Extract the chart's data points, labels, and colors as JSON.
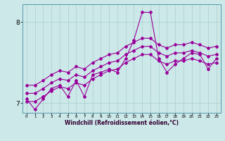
{
  "xlabel": "Windchill (Refroidissement éolien,°C)",
  "background_color": "#cce8e8",
  "grid_color": "#aacfcf",
  "line_color": "#990099",
  "x": [
    0,
    1,
    2,
    3,
    4,
    5,
    6,
    7,
    8,
    9,
    10,
    11,
    12,
    13,
    14,
    15,
    16,
    17,
    18,
    19,
    20,
    21,
    22,
    23
  ],
  "series_volatile": [
    7.05,
    6.92,
    7.05,
    7.18,
    7.22,
    7.08,
    7.28,
    7.08,
    7.35,
    7.38,
    7.42,
    7.38,
    7.55,
    7.78,
    8.12,
    8.12,
    7.55,
    7.38,
    7.48,
    7.55,
    7.62,
    7.6,
    7.42,
    7.55
  ],
  "series_upper": [
    7.22,
    7.22,
    7.28,
    7.35,
    7.4,
    7.38,
    7.45,
    7.42,
    7.5,
    7.55,
    7.6,
    7.62,
    7.7,
    7.75,
    7.8,
    7.8,
    7.72,
    7.68,
    7.72,
    7.72,
    7.75,
    7.72,
    7.68,
    7.7
  ],
  "series_mid": [
    7.12,
    7.12,
    7.18,
    7.25,
    7.3,
    7.28,
    7.35,
    7.32,
    7.4,
    7.45,
    7.5,
    7.52,
    7.6,
    7.65,
    7.7,
    7.7,
    7.62,
    7.58,
    7.62,
    7.62,
    7.65,
    7.62,
    7.58,
    7.6
  ],
  "series_lower": [
    7.02,
    7.02,
    7.08,
    7.15,
    7.2,
    7.18,
    7.25,
    7.22,
    7.3,
    7.35,
    7.4,
    7.42,
    7.5,
    7.55,
    7.6,
    7.6,
    7.52,
    7.48,
    7.52,
    7.52,
    7.55,
    7.52,
    7.48,
    7.5
  ],
  "ylim": [
    6.88,
    8.22
  ],
  "yticks": [
    7,
    8
  ],
  "xlim": [
    -0.5,
    23.5
  ]
}
